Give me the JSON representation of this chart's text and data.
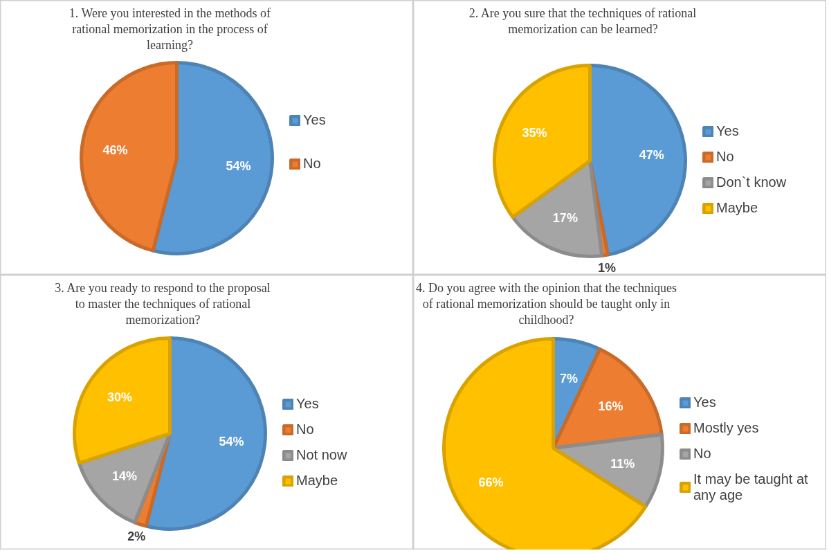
{
  "chart_data": [
    {
      "type": "pie",
      "title": "1. Were you interested in the methods of rational memorization in the process of learning?",
      "categories": [
        "Yes",
        "No"
      ],
      "values": [
        54,
        46
      ],
      "value_labels": [
        "54%",
        "46%"
      ],
      "colors": [
        "#5b9bd5",
        "#ed7d31"
      ],
      "legend": "right"
    },
    {
      "type": "pie",
      "title": "2. Are you sure that the techniques of rational memorization can be learned?",
      "categories": [
        "Yes",
        "No",
        "Don`t know",
        "Maybe"
      ],
      "values": [
        47,
        1,
        17,
        35
      ],
      "value_labels": [
        "47%",
        "1%",
        "17%",
        "35%"
      ],
      "colors": [
        "#5b9bd5",
        "#ed7d31",
        "#a5a5a5",
        "#ffc000"
      ],
      "legend": "right"
    },
    {
      "type": "pie",
      "title": "3. Are you ready to respond to the proposal to master the techniques of rational memorization?",
      "categories": [
        "Yes",
        "No",
        "Not now",
        "Maybe"
      ],
      "values": [
        54,
        2,
        14,
        30
      ],
      "value_labels": [
        "54%",
        "2%",
        "14%",
        "30%"
      ],
      "colors": [
        "#5b9bd5",
        "#ed7d31",
        "#a5a5a5",
        "#ffc000"
      ],
      "legend": "right"
    },
    {
      "type": "pie",
      "title": "4. Do you agree with the opinion that the techniques of rational memorization should be taught only in childhood?",
      "categories": [
        "Yes",
        "Mostly yes",
        "No",
        "It may be taught at any age"
      ],
      "values": [
        7,
        16,
        11,
        66
      ],
      "value_labels": [
        "7%",
        "16%",
        "11%",
        "66%"
      ],
      "colors": [
        "#5b9bd5",
        "#ed7d31",
        "#a5a5a5",
        "#ffc000"
      ],
      "legend": "right"
    }
  ]
}
